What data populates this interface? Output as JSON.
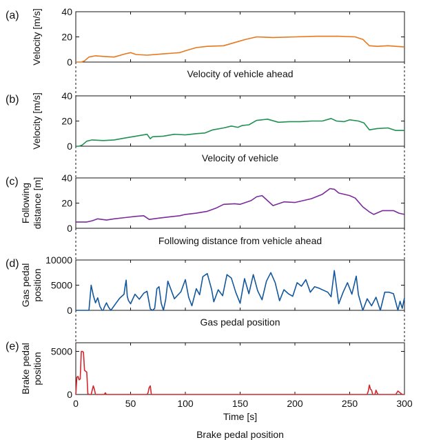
{
  "chart_data": [
    {
      "panel_label": "(a)",
      "type": "line",
      "ylabel": [
        "Velocity [m/s]"
      ],
      "caption": "Velocity of vehicle ahead",
      "ylim": [
        0,
        40
      ],
      "yticks": [
        0,
        20,
        40
      ],
      "xlim": [
        0,
        300
      ],
      "color": "#e8761a",
      "series": [
        {
          "x": [
            0,
            5,
            8,
            12,
            18,
            25,
            35,
            45,
            50,
            55,
            65,
            80,
            95,
            100,
            110,
            120,
            135,
            145,
            155,
            165,
            180,
            200,
            220,
            240,
            255,
            262,
            268,
            275,
            285,
            292,
            300
          ],
          "values": [
            0,
            0,
            1,
            4,
            5,
            4.5,
            4,
            6.5,
            7.5,
            6,
            5.5,
            6.5,
            7.5,
            9,
            11.5,
            12.5,
            13,
            15.5,
            18,
            20,
            19.5,
            20,
            20.5,
            20.5,
            20,
            18,
            13,
            12.5,
            13,
            12.5,
            12
          ]
        }
      ]
    },
    {
      "panel_label": "(b)",
      "type": "line",
      "ylabel": [
        "Velocity [m/s]"
      ],
      "caption": "Velocity of vehicle",
      "ylim": [
        0,
        40
      ],
      "yticks": [
        0,
        20,
        40
      ],
      "xlim": [
        0,
        300
      ],
      "color": "#1e9050",
      "series": [
        {
          "x": [
            0,
            3,
            6,
            10,
            15,
            25,
            35,
            45,
            55,
            65,
            68,
            70,
            80,
            90,
            100,
            110,
            118,
            125,
            135,
            142,
            148,
            152,
            158,
            165,
            175,
            185,
            195,
            205,
            215,
            225,
            233,
            238,
            245,
            250,
            258,
            263,
            268,
            275,
            285,
            292,
            300
          ],
          "values": [
            0,
            0,
            1,
            4,
            5,
            4.5,
            5,
            6.5,
            8,
            9.5,
            6,
            7.5,
            8,
            9.5,
            9,
            10,
            10.5,
            13,
            14.5,
            16,
            15,
            16.5,
            17,
            20.5,
            21.5,
            19,
            19.5,
            19.5,
            20,
            20,
            22,
            20,
            19.5,
            21,
            20,
            18.5,
            13,
            14,
            14.5,
            12.5,
            12.5
          ]
        }
      ]
    },
    {
      "panel_label": "(c)",
      "type": "line",
      "ylabel": [
        "Following",
        "distance [m]"
      ],
      "caption": "Following distance from vehicle ahead",
      "ylim": [
        0,
        40
      ],
      "yticks": [
        0,
        20,
        40
      ],
      "xlim": [
        0,
        300
      ],
      "color": "#7a2a9a",
      "series": [
        {
          "x": [
            0,
            10,
            15,
            20,
            28,
            35,
            45,
            55,
            62,
            67,
            75,
            85,
            95,
            100,
            110,
            120,
            128,
            135,
            145,
            150,
            160,
            165,
            170,
            180,
            190,
            200,
            215,
            225,
            232,
            236,
            240,
            250,
            255,
            262,
            268,
            272,
            280,
            290,
            295,
            300
          ],
          "values": [
            5,
            5,
            6,
            7.5,
            6.5,
            7.5,
            8.5,
            9.5,
            10,
            7,
            8,
            9,
            10,
            11,
            12,
            13.5,
            16,
            19,
            19.5,
            19,
            22,
            25,
            26,
            18,
            21,
            20.5,
            23.5,
            27,
            31.5,
            31,
            28,
            26,
            24,
            17,
            13,
            11,
            14,
            14,
            12,
            11
          ]
        }
      ]
    },
    {
      "panel_label": "(d)",
      "type": "line",
      "ylabel": [
        "Gas pedal",
        "position"
      ],
      "caption": "Gas pedal position",
      "ylim": [
        0,
        10000
      ],
      "yticks": [
        0,
        5000,
        10000
      ],
      "xlim": [
        0,
        300
      ],
      "color": "#12569c",
      "series": [
        {
          "x": [
            0,
            12,
            14,
            16,
            18,
            20,
            22,
            24,
            25,
            26,
            28,
            30,
            32,
            36,
            40,
            44,
            45,
            46,
            47,
            48,
            50,
            54,
            58,
            62,
            65,
            68,
            70,
            72,
            74,
            76,
            78,
            80,
            82,
            84,
            90,
            96,
            100,
            103,
            106,
            110,
            113,
            116,
            120,
            124,
            126,
            130,
            134,
            138,
            142,
            146,
            150,
            154,
            158,
            162,
            166,
            170,
            174,
            178,
            182,
            186,
            190,
            194,
            198,
            202,
            206,
            210,
            214,
            218,
            222,
            226,
            230,
            233,
            236,
            240,
            244,
            248,
            252,
            256,
            258,
            262,
            266,
            270,
            274,
            278,
            282,
            286,
            290,
            294,
            296,
            298,
            300
          ],
          "values": [
            0,
            0,
            5000,
            3000,
            1500,
            2500,
            800,
            0,
            0,
            600,
            1500,
            600,
            0,
            1200,
            2400,
            3200,
            4800,
            6000,
            2800,
            2000,
            1300,
            3200,
            2200,
            3400,
            3800,
            300,
            0,
            400,
            4300,
            4700,
            1400,
            0,
            2100,
            5800,
            2300,
            3700,
            6100,
            2600,
            900,
            4300,
            3100,
            6700,
            7300,
            4100,
            1700,
            4100,
            2900,
            7100,
            6400,
            3600,
            1400,
            6300,
            3300,
            7100,
            3900,
            2100,
            5800,
            7500,
            5500,
            1900,
            4100,
            3300,
            2800,
            5500,
            4800,
            6100,
            3600,
            4700,
            4400,
            4000,
            3600,
            2700,
            7900,
            1300,
            3600,
            5500,
            3200,
            6800,
            3100,
            0,
            2300,
            900,
            2600,
            0,
            3600,
            3600,
            3300,
            0,
            1800,
            400,
            2500
          ]
        }
      ]
    },
    {
      "panel_label": "(e)",
      "type": "line",
      "ylabel": [
        "Brake pedal",
        "position"
      ],
      "caption": "Brake pedal position",
      "xlabel": "Time [s]",
      "ylim": [
        0,
        6000
      ],
      "yticks": [
        0,
        5000
      ],
      "xlim": [
        0,
        300
      ],
      "xticks": [
        0,
        50,
        100,
        150,
        200,
        250,
        300
      ],
      "color": "#d3262c",
      "series": [
        {
          "x": [
            0,
            1,
            2,
            3,
            4,
            5,
            6,
            7,
            8,
            9,
            10,
            11,
            12,
            14,
            16,
            17,
            18,
            20,
            26,
            27,
            28,
            30,
            65,
            66,
            67,
            68,
            69,
            70,
            266,
            267,
            268,
            269,
            270,
            271,
            273,
            274,
            275,
            276,
            292,
            293,
            294,
            296,
            298,
            300
          ],
          "values": [
            0,
            2000,
            2100,
            1700,
            1800,
            5000,
            5000,
            4900,
            2800,
            2700,
            2600,
            100,
            0,
            0,
            1000,
            600,
            0,
            0,
            0,
            200,
            0,
            0,
            0,
            200,
            800,
            1000,
            0,
            0,
            0,
            400,
            1100,
            600,
            500,
            0,
            0,
            500,
            200,
            0,
            0,
            200,
            400,
            200,
            0,
            0
          ]
        }
      ]
    }
  ]
}
